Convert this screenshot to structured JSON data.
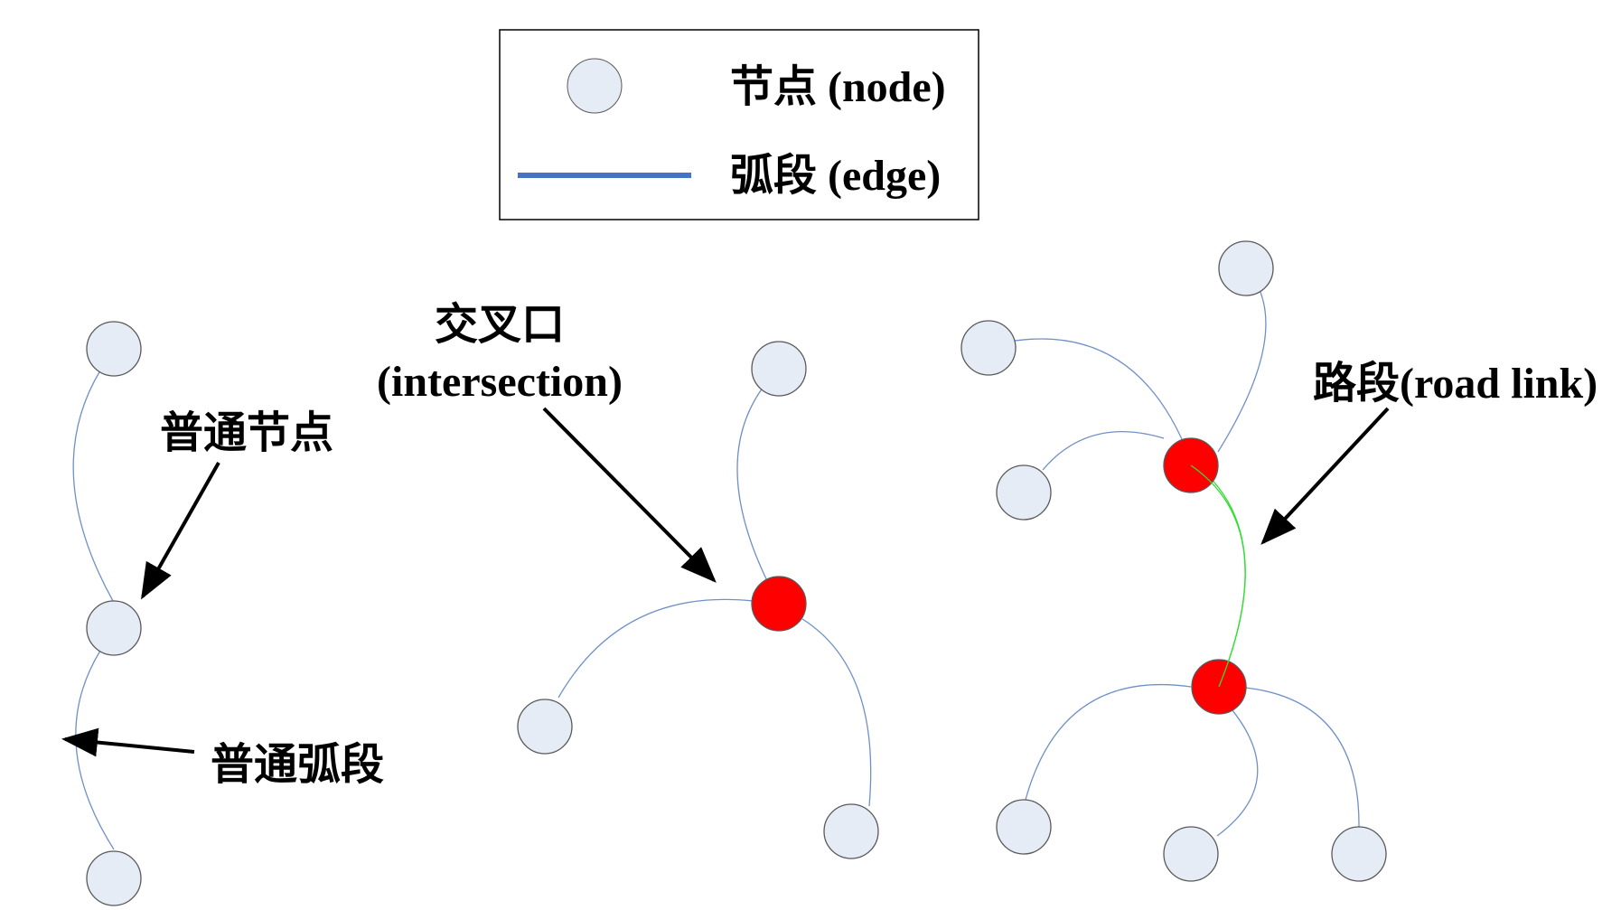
{
  "legend": {
    "node_label": "节点 (node)",
    "edge_label": "弧段 (edge)"
  },
  "annotations": {
    "ordinary_node": "普通节点",
    "ordinary_edge": "普通弧段",
    "intersection_line1": "交叉口",
    "intersection_line2": "(intersection)",
    "road_link": "路段(road link)"
  },
  "colors": {
    "node_fill": "#e6ecf6",
    "node_stroke": "#595959",
    "intersection_fill": "#ff0000",
    "edge": "#7090c8",
    "legend_edge": "#4472c4",
    "road_link": "#33dd33",
    "arrow": "#000000"
  }
}
